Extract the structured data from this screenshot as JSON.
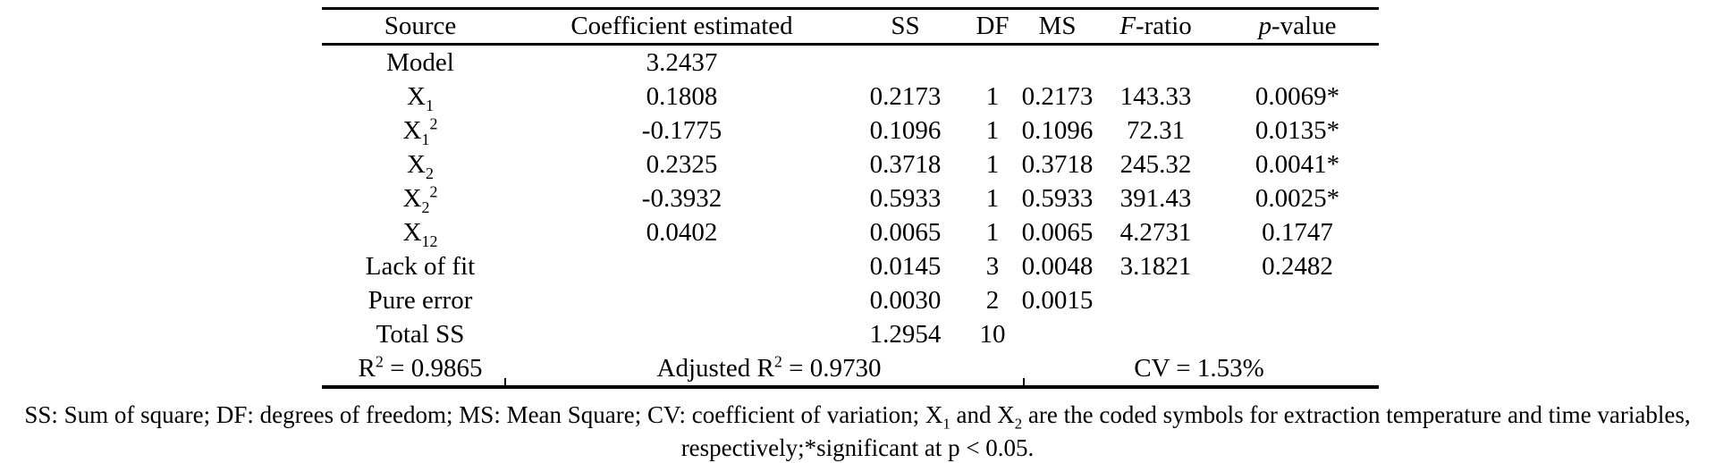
{
  "table": {
    "columns": [
      {
        "label": "Source"
      },
      {
        "label": "Coefficient estimated"
      },
      {
        "label": "SS"
      },
      {
        "label": "DF"
      },
      {
        "label": "MS"
      },
      {
        "label": "~F~-ratio"
      },
      {
        "label": "~p~-value"
      }
    ],
    "rows": [
      [
        "Model",
        "3.2437",
        "",
        "",
        "",
        "",
        ""
      ],
      [
        "X_{1}",
        "0.1808",
        "0.2173",
        "1",
        "0.2173",
        "143.33",
        "0.0069*"
      ],
      [
        "X_{1}^{2}",
        "-0.1775",
        "0.1096",
        "1",
        "0.1096",
        "72.31",
        "0.0135*"
      ],
      [
        "X_{2}",
        "0.2325",
        "0.3718",
        "1",
        "0.3718",
        "245.32",
        "0.0041*"
      ],
      [
        "X_{2}^{2}",
        "-0.3932",
        "0.5933",
        "1",
        "0.5933",
        "391.43",
        "0.0025*"
      ],
      [
        "X_{12}",
        "0.0402",
        "0.0065",
        "1",
        "0.0065",
        "4.2731",
        "0.1747"
      ],
      [
        "Lack of fit",
        "",
        "0.0145",
        "3",
        "0.0048",
        "3.1821",
        "0.2482"
      ],
      [
        "Pure error",
        "",
        "0.0030",
        "2",
        "0.0015",
        "",
        ""
      ],
      [
        "Total SS",
        "",
        "1.2954",
        "10",
        "",
        "",
        ""
      ]
    ],
    "summary_row": {
      "r2": "R^{2} = 0.9865",
      "adj_r2": "Adjusted R^{2} = 0.9730",
      "cv": "CV = 1.53%"
    }
  },
  "footnote": "SS: Sum of square; DF: degrees of freedom; MS: Mean Square; CV: coefficient of variation; X_{1} and X_{2} are the coded symbols for extraction temperature and time variables, respectively;*significant at p < 0.05.",
  "colors": {
    "text": "#000000",
    "background": "#ffffff",
    "rule": "#000000"
  }
}
